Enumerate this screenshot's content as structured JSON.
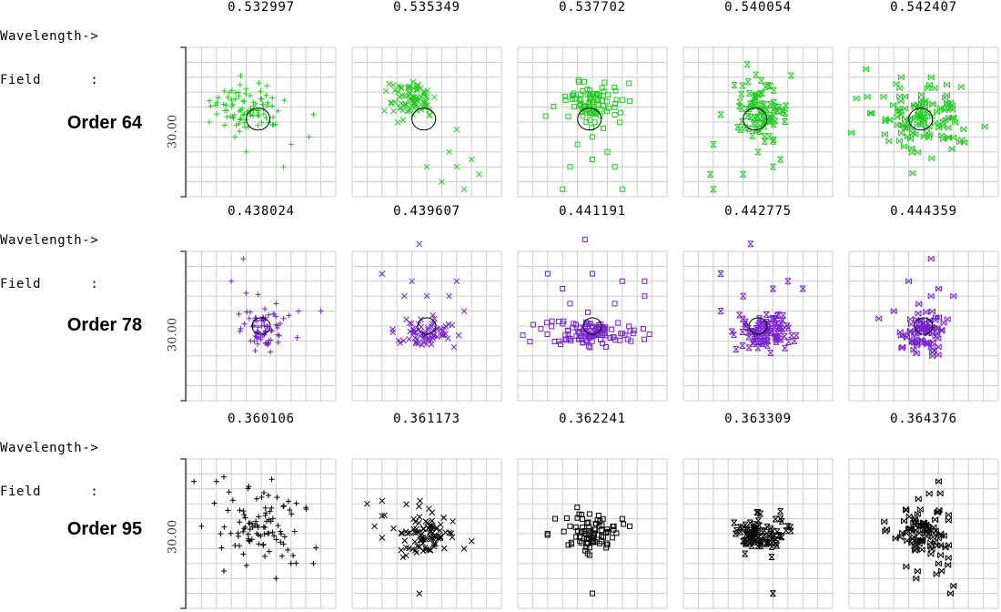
{
  "header": {
    "wavelength_label": "Wavelength->",
    "field_label": "Field      :"
  },
  "rows": [
    {
      "order": "Order 64",
      "field_value": "30.00",
      "color": "#22cc22",
      "wavelengths": [
        "0.532997",
        "0.535349",
        "0.537702",
        "0.540054",
        "0.542407"
      ]
    },
    {
      "order": "Order 78",
      "field_value": "30.00",
      "color": "#7722cc",
      "wavelengths": [
        "0.438024",
        "0.439607",
        "0.441191",
        "0.442775",
        "0.444359"
      ]
    },
    {
      "order": "Order 95",
      "field_value": "30.00",
      "color": "#000000",
      "wavelengths": [
        "0.360106",
        "0.361173",
        "0.362241",
        "0.363309",
        "0.364376"
      ]
    }
  ],
  "markers": [
    "plus",
    "cross",
    "square",
    "hourglass",
    "bowtie"
  ]
}
